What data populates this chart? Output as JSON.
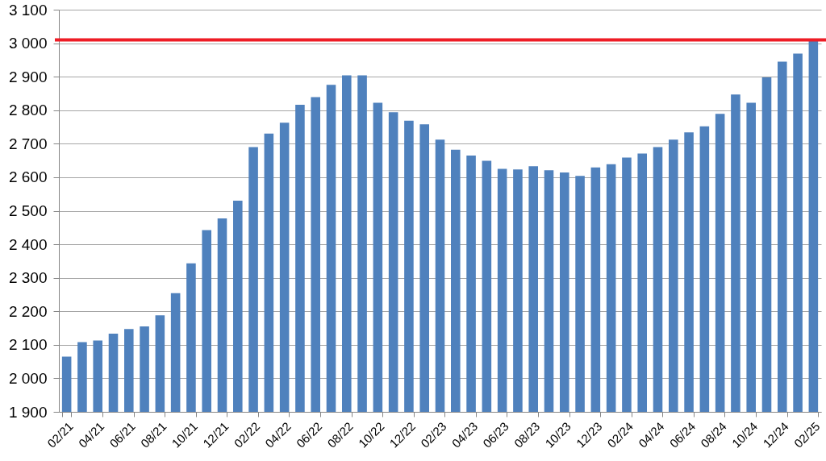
{
  "chart_data": {
    "type": "bar",
    "categories": [
      "02/21",
      null,
      "04/21",
      null,
      "06/21",
      null,
      "08/21",
      null,
      "10/21",
      null,
      "12/21",
      null,
      "02/22",
      null,
      "04/22",
      null,
      "06/22",
      null,
      "08/22",
      null,
      "10/22",
      null,
      "12/22",
      null,
      "02/23",
      null,
      "04/23",
      null,
      "06/23",
      null,
      "08/23",
      null,
      "10/23",
      null,
      "12/23",
      null,
      "02/24",
      null,
      "04/24",
      null,
      "06/24",
      null,
      "08/24",
      null,
      "10/24",
      null,
      "12/24",
      null,
      "02/25"
    ],
    "values": [
      2065,
      2108,
      2113,
      2133,
      2147,
      2155,
      2188,
      2254,
      2343,
      2442,
      2477,
      2530,
      2690,
      2730,
      2763,
      2816,
      2839,
      2876,
      2904,
      2904,
      2822,
      2794,
      2769,
      2758,
      2712,
      2682,
      2665,
      2649,
      2625,
      2623,
      2633,
      2621,
      2614,
      2604,
      2629,
      2639,
      2659,
      2671,
      2690,
      2712,
      2734,
      2752,
      2789,
      2847,
      2822,
      2898,
      2945,
      2969,
      3007
    ],
    "color": "#4f81bd",
    "ylim": [
      1900,
      3100
    ],
    "yticks": [
      {
        "value": 1900,
        "label": "1 900"
      },
      {
        "value": 2000,
        "label": "2 000"
      },
      {
        "value": 2100,
        "label": "2 100"
      },
      {
        "value": 2200,
        "label": "2 200"
      },
      {
        "value": 2300,
        "label": "2 300"
      },
      {
        "value": 2400,
        "label": "2 400"
      },
      {
        "value": 2500,
        "label": "2 500"
      },
      {
        "value": 2600,
        "label": "2 600"
      },
      {
        "value": 2700,
        "label": "2 700"
      },
      {
        "value": 2800,
        "label": "2 800"
      },
      {
        "value": 2900,
        "label": "2 900"
      },
      {
        "value": 3000,
        "label": "3 000"
      },
      {
        "value": 3100,
        "label": "3 100"
      }
    ],
    "grid": "y",
    "ref_lines": [
      {
        "axis": "y",
        "value": 3010,
        "color": "#ee1c25"
      }
    ]
  }
}
